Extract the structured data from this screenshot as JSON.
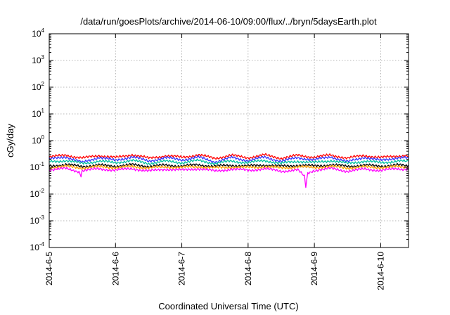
{
  "chart_data": {
    "type": "line",
    "title": "/data/run/goesPlots/archive/2014-06-10/09:00/flux/../bryn/5daysEarth.plot",
    "xlabel": "Coordinated Universal Time (UTC)",
    "ylabel": "cGy/day",
    "yscale": "log",
    "ylim": [
      0.0001,
      10000
    ],
    "xlim": [
      0,
      5.42
    ],
    "x_ticks": [
      {
        "value": 0,
        "label": "2014-6-5"
      },
      {
        "value": 1,
        "label": "2014-6-6"
      },
      {
        "value": 2,
        "label": "2014-6-7"
      },
      {
        "value": 3,
        "label": "2014-6-8"
      },
      {
        "value": 4,
        "label": "2014-6-9"
      },
      {
        "value": 5,
        "label": "2014-6-10"
      }
    ],
    "y_ticks": [
      {
        "value": 0.0001,
        "base": "10",
        "exp": "-4"
      },
      {
        "value": 0.001,
        "base": "10",
        "exp": "-3"
      },
      {
        "value": 0.01,
        "base": "10",
        "exp": "-2"
      },
      {
        "value": 0.1,
        "base": "10",
        "exp": "-1"
      },
      {
        "value": 1,
        "base": "10",
        "exp": "0"
      },
      {
        "value": 10,
        "base": "10",
        "exp": "1"
      },
      {
        "value": 100,
        "base": "10",
        "exp": "2"
      },
      {
        "value": 1000,
        "base": "10",
        "exp": "3"
      },
      {
        "value": 10000,
        "base": "10",
        "exp": "4"
      }
    ],
    "grid": true,
    "legend": "none",
    "series": [
      {
        "color": "#ff0000",
        "x": [
          0,
          0.25,
          0.5,
          0.75,
          1,
          1.25,
          1.5,
          1.75,
          2,
          2.25,
          2.5,
          2.75,
          3,
          3.25,
          3.5,
          3.75,
          4,
          4.25,
          4.5,
          4.75,
          5,
          5.25,
          5.42
        ],
        "values": [
          0.24,
          0.29,
          0.22,
          0.28,
          0.23,
          0.3,
          0.22,
          0.27,
          0.24,
          0.29,
          0.22,
          0.28,
          0.23,
          0.29,
          0.22,
          0.28,
          0.24,
          0.29,
          0.22,
          0.28,
          0.23,
          0.27,
          0.26
        ]
      },
      {
        "color": "#3333ff",
        "x": [
          0,
          0.25,
          0.5,
          0.75,
          1,
          1.25,
          1.5,
          1.75,
          2,
          2.25,
          2.5,
          2.75,
          3,
          3.25,
          3.5,
          3.75,
          4,
          4.25,
          4.5,
          4.75,
          5,
          5.25,
          5.42
        ],
        "values": [
          0.2,
          0.25,
          0.15,
          0.24,
          0.18,
          0.25,
          0.17,
          0.23,
          0.19,
          0.24,
          0.16,
          0.23,
          0.18,
          0.24,
          0.17,
          0.23,
          0.19,
          0.25,
          0.16,
          0.24,
          0.18,
          0.23,
          0.22
        ]
      },
      {
        "color": "#00c0a0",
        "x": [
          0,
          0.25,
          0.5,
          0.75,
          1,
          1.25,
          1.5,
          1.75,
          2,
          2.25,
          2.5,
          2.75,
          3,
          3.25,
          3.5,
          3.75,
          4,
          4.25,
          4.5,
          4.75,
          5,
          5.25,
          5.42
        ],
        "values": [
          0.16,
          0.18,
          0.14,
          0.17,
          0.15,
          0.18,
          0.14,
          0.17,
          0.15,
          0.18,
          0.14,
          0.17,
          0.15,
          0.18,
          0.14,
          0.17,
          0.15,
          0.18,
          0.14,
          0.17,
          0.15,
          0.17,
          0.17
        ]
      },
      {
        "color": "#000000",
        "x": [
          0,
          0.25,
          0.5,
          0.75,
          1,
          1.25,
          1.5,
          1.75,
          2,
          2.25,
          2.5,
          2.75,
          3,
          3.25,
          3.5,
          3.75,
          4,
          4.25,
          4.5,
          4.75,
          5,
          5.25,
          5.42
        ],
        "values": [
          0.115,
          0.125,
          0.11,
          0.12,
          0.112,
          0.125,
          0.11,
          0.12,
          0.113,
          0.124,
          0.11,
          0.12,
          0.112,
          0.123,
          0.11,
          0.12,
          0.113,
          0.124,
          0.11,
          0.12,
          0.112,
          0.122,
          0.12
        ]
      },
      {
        "color": "#ffa000",
        "x": [
          0,
          0.25,
          0.5,
          0.75,
          1,
          1.25,
          1.5,
          1.75,
          2,
          2.25,
          2.5,
          2.75,
          3,
          3.25,
          3.5,
          3.75,
          4,
          4.25,
          4.5,
          4.75,
          5,
          5.25,
          5.42
        ],
        "values": [
          0.1,
          0.108,
          0.095,
          0.105,
          0.098,
          0.108,
          0.095,
          0.104,
          0.099,
          0.107,
          0.095,
          0.104,
          0.098,
          0.106,
          0.095,
          0.104,
          0.099,
          0.107,
          0.095,
          0.104,
          0.098,
          0.106,
          0.105
        ]
      },
      {
        "color": "#ff00ff",
        "x": [
          0,
          0.25,
          0.45,
          0.48,
          0.5,
          0.75,
          1,
          1.25,
          1.5,
          1.75,
          2,
          2.25,
          2.5,
          2.75,
          3,
          3.25,
          3.5,
          3.75,
          3.85,
          3.87,
          3.9,
          4,
          4.25,
          4.5,
          4.75,
          5,
          5.25,
          5.42
        ],
        "values": [
          0.08,
          0.09,
          0.07,
          0.05,
          0.075,
          0.088,
          0.078,
          0.09,
          0.072,
          0.086,
          0.078,
          0.09,
          0.072,
          0.086,
          0.077,
          0.088,
          0.072,
          0.08,
          0.045,
          0.02,
          0.06,
          0.078,
          0.09,
          0.072,
          0.086,
          0.077,
          0.088,
          0.085
        ]
      }
    ]
  }
}
